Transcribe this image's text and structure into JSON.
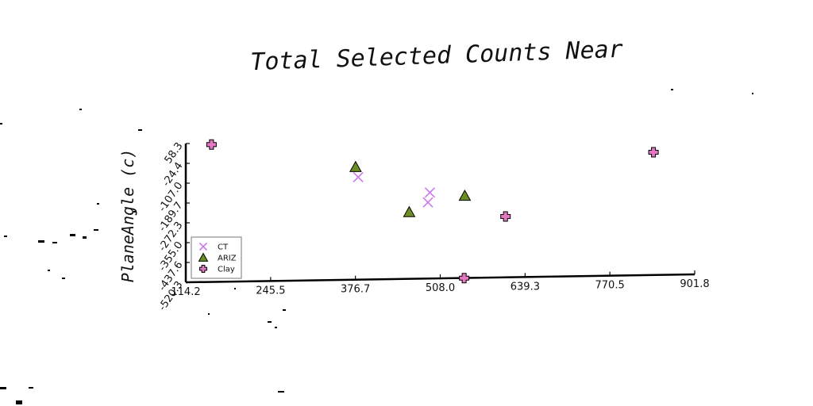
{
  "chart_data": {
    "type": "scatter",
    "title": "Total Selected Counts Near",
    "xlabel": "",
    "ylabel": "PlaneAngle (c)",
    "xlim": [
      114.2,
      901.8
    ],
    "ylim": [
      -520.3,
      58.3
    ],
    "x_ticks": [
      "114.2",
      "245.5",
      "376.7",
      "508.0",
      "639.3",
      "770.5",
      "901.8"
    ],
    "y_ticks": [
      "-520.3",
      "-437.6",
      "-355.0",
      "-272.3",
      "-189.7",
      "-107.0",
      "-24.4",
      "58.3"
    ],
    "grid": false,
    "legend_position": "lower-left",
    "series": [
      {
        "name": "CT",
        "marker": "x",
        "color": "#cc77ee",
        "points": [
          [
            381,
            -82
          ],
          [
            489,
            -187
          ],
          [
            492,
            -146
          ]
        ]
      },
      {
        "name": "ARIZ",
        "marker": "triangle",
        "color": "#6b8e23",
        "points": [
          [
            377,
            -40
          ],
          [
            460,
            -228
          ],
          [
            546,
            -160
          ]
        ]
      },
      {
        "name": "Clay",
        "marker": "plus",
        "color": "#e377c2",
        "points": [
          [
            154,
            54
          ],
          [
            545,
            -503
          ],
          [
            609,
            -246
          ],
          [
            838,
            22
          ]
        ]
      }
    ]
  }
}
